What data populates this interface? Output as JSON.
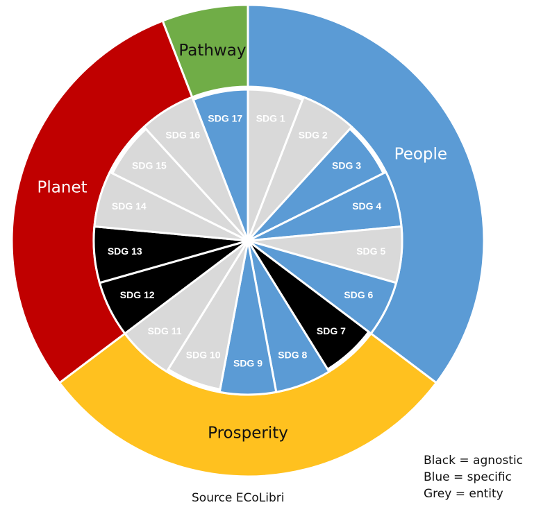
{
  "chart_data": {
    "type": "sunburst",
    "title": "",
    "outer_ring": [
      {
        "label": "People",
        "sdgs": [
          "SDG 1",
          "SDG 2",
          "SDG 3",
          "SDG 4",
          "SDG 5",
          "SDG 6"
        ],
        "color": "#5B9BD5"
      },
      {
        "label": "Prosperity",
        "sdgs": [
          "SDG 7",
          "SDG 8",
          "SDG 9",
          "SDG 10",
          "SDG 11"
        ],
        "color": "#FFC11F"
      },
      {
        "label": "Planet",
        "sdgs": [
          "SDG 12",
          "SDG 13",
          "SDG 14",
          "SDG 15",
          "SDG 16"
        ],
        "color": "#C00000"
      },
      {
        "label": "Pathway",
        "sdgs": [
          "SDG 17"
        ],
        "color": "#70AD47"
      }
    ],
    "inner_ring": [
      {
        "label": "SDG 1",
        "category": "entity"
      },
      {
        "label": "SDG 2",
        "category": "entity"
      },
      {
        "label": "SDG 3",
        "category": "specific"
      },
      {
        "label": "SDG 4",
        "category": "specific"
      },
      {
        "label": "SDG 5",
        "category": "entity"
      },
      {
        "label": "SDG 6",
        "category": "specific"
      },
      {
        "label": "SDG 7",
        "category": "agnostic"
      },
      {
        "label": "SDG 8",
        "category": "specific"
      },
      {
        "label": "SDG 9",
        "category": "specific"
      },
      {
        "label": "SDG 10",
        "category": "entity"
      },
      {
        "label": "SDG 11",
        "category": "entity"
      },
      {
        "label": "SDG 12",
        "category": "agnostic"
      },
      {
        "label": "SDG 13",
        "category": "agnostic"
      },
      {
        "label": "SDG 14",
        "category": "entity"
      },
      {
        "label": "SDG 15",
        "category": "entity"
      },
      {
        "label": "SDG 16",
        "category": "entity"
      },
      {
        "label": "SDG 17",
        "category": "specific"
      }
    ],
    "category_colors": {
      "agnostic": "#000000",
      "specific": "#5B9BD5",
      "entity": "#D9D9D9"
    }
  },
  "legend": {
    "line1": "Black = agnostic",
    "line2": "Blue = specific",
    "line3": "Grey = entity"
  },
  "source": "Source ECoLibri"
}
